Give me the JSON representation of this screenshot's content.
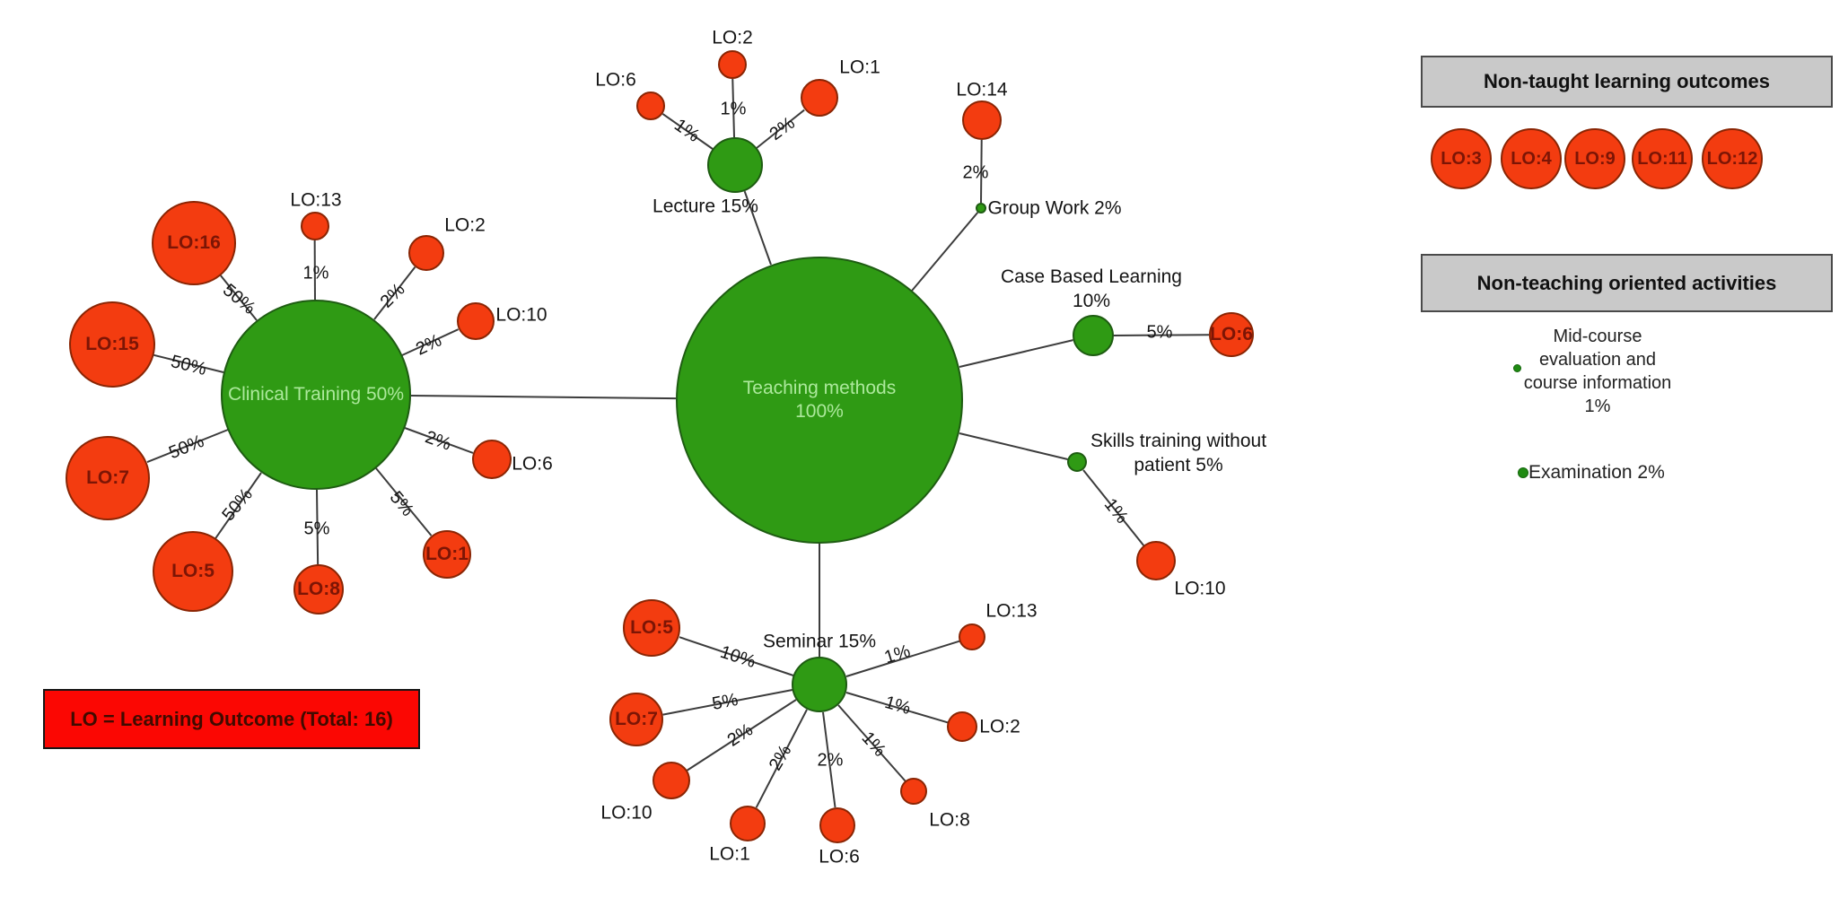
{
  "figure": {
    "key_box": "LO = Learning Outcome (Total: 16)"
  },
  "legend": {
    "non_taught": {
      "title": "Non-taught learning outcomes",
      "items": [
        "LO:3",
        "LO:4",
        "LO:9",
        "LO:11",
        "LO:12"
      ]
    },
    "non_teaching": {
      "title": "Non-teaching oriented activities",
      "midcourse_lines": [
        "Mid-course",
        "evaluation and",
        "course information",
        "1%"
      ],
      "examination": "Examination 2%"
    }
  },
  "diagram": {
    "nodes": [
      {
        "id": "teaching",
        "kind": "hub",
        "lines": [
          "Teaching methods",
          "100%"
        ]
      },
      {
        "id": "clinical",
        "kind": "hub",
        "lines": [
          "Clinical Training 50%"
        ]
      },
      {
        "id": "lecture",
        "kind": "hub",
        "lines": [
          "Lecture 15%"
        ]
      },
      {
        "id": "seminar",
        "kind": "hub",
        "lines": [
          "Seminar 15%"
        ]
      },
      {
        "id": "groupwork",
        "kind": "hub",
        "lines": [
          "Group Work 2%"
        ]
      },
      {
        "id": "casebased",
        "kind": "hub",
        "lines": [
          "Case Based Learning",
          "10%"
        ]
      },
      {
        "id": "skills",
        "kind": "hub",
        "lines": [
          "Skills training without",
          "patient 5%"
        ]
      },
      {
        "id": "cl_lo16",
        "kind": "leaf",
        "lines": [
          "LO:16"
        ]
      },
      {
        "id": "cl_lo13",
        "kind": "leaf",
        "lines": [
          "LO:13"
        ]
      },
      {
        "id": "cl_lo2",
        "kind": "leaf",
        "lines": [
          "LO:2"
        ]
      },
      {
        "id": "cl_lo10",
        "kind": "leaf",
        "lines": [
          "LO:10"
        ]
      },
      {
        "id": "cl_lo15",
        "kind": "leaf",
        "lines": [
          "LO:15"
        ]
      },
      {
        "id": "cl_lo7",
        "kind": "leaf",
        "lines": [
          "LO:7"
        ]
      },
      {
        "id": "cl_lo5",
        "kind": "leaf",
        "lines": [
          "LO:5"
        ]
      },
      {
        "id": "cl_lo8",
        "kind": "leaf",
        "lines": [
          "LO:8"
        ]
      },
      {
        "id": "cl_lo1",
        "kind": "leaf",
        "lines": [
          "LO:1"
        ]
      },
      {
        "id": "cl_lo6",
        "kind": "leaf",
        "lines": [
          "LO:6"
        ]
      },
      {
        "id": "le_lo6",
        "kind": "leaf",
        "lines": [
          "LO:6"
        ]
      },
      {
        "id": "le_lo2",
        "kind": "leaf",
        "lines": [
          "LO:2"
        ]
      },
      {
        "id": "le_lo1",
        "kind": "leaf",
        "lines": [
          "LO:1"
        ]
      },
      {
        "id": "gw_lo14",
        "kind": "leaf",
        "lines": [
          "LO:14"
        ]
      },
      {
        "id": "cb_lo6",
        "kind": "leaf",
        "lines": [
          "LO:6"
        ]
      },
      {
        "id": "sk_lo10",
        "kind": "leaf",
        "lines": [
          "LO:10"
        ]
      },
      {
        "id": "se_lo5",
        "kind": "leaf",
        "lines": [
          "LO:5"
        ]
      },
      {
        "id": "se_lo7",
        "kind": "leaf",
        "lines": [
          "LO:7"
        ]
      },
      {
        "id": "se_lo10",
        "kind": "leaf",
        "lines": [
          "LO:10"
        ]
      },
      {
        "id": "se_lo1",
        "kind": "leaf",
        "lines": [
          "LO:1"
        ]
      },
      {
        "id": "se_lo6",
        "kind": "leaf",
        "lines": [
          "LO:6"
        ]
      },
      {
        "id": "se_lo8",
        "kind": "leaf",
        "lines": [
          "LO:8"
        ]
      },
      {
        "id": "se_lo2",
        "kind": "leaf",
        "lines": [
          "LO:2"
        ]
      },
      {
        "id": "se_lo13",
        "kind": "leaf",
        "lines": [
          "LO:13"
        ]
      }
    ],
    "edges": [
      {
        "from": "clinical",
        "to": "cl_lo16",
        "label": "50%"
      },
      {
        "from": "clinical",
        "to": "cl_lo13",
        "label": "1%"
      },
      {
        "from": "clinical",
        "to": "cl_lo2",
        "label": "2%"
      },
      {
        "from": "clinical",
        "to": "cl_lo10",
        "label": "2%"
      },
      {
        "from": "clinical",
        "to": "cl_lo15",
        "label": "50%"
      },
      {
        "from": "clinical",
        "to": "cl_lo7",
        "label": "50%"
      },
      {
        "from": "clinical",
        "to": "cl_lo5",
        "label": "50%"
      },
      {
        "from": "clinical",
        "to": "cl_lo8",
        "label": "5%"
      },
      {
        "from": "clinical",
        "to": "cl_lo1",
        "label": "5%"
      },
      {
        "from": "clinical",
        "to": "cl_lo6",
        "label": "2%"
      },
      {
        "from": "clinical",
        "to": "teaching",
        "label": ""
      },
      {
        "from": "teaching",
        "to": "lecture",
        "label": ""
      },
      {
        "from": "teaching",
        "to": "groupwork",
        "label": ""
      },
      {
        "from": "teaching",
        "to": "casebased",
        "label": ""
      },
      {
        "from": "teaching",
        "to": "skills",
        "label": ""
      },
      {
        "from": "teaching",
        "to": "seminar",
        "label": ""
      },
      {
        "from": "lecture",
        "to": "le_lo6",
        "label": "1%"
      },
      {
        "from": "lecture",
        "to": "le_lo2",
        "label": "1%"
      },
      {
        "from": "lecture",
        "to": "le_lo1",
        "label": "2%"
      },
      {
        "from": "groupwork",
        "to": "gw_lo14",
        "label": "2%"
      },
      {
        "from": "casebased",
        "to": "cb_lo6",
        "label": "5%"
      },
      {
        "from": "skills",
        "to": "sk_lo10",
        "label": "1%"
      },
      {
        "from": "seminar",
        "to": "se_lo5",
        "label": "10%"
      },
      {
        "from": "seminar",
        "to": "se_lo7",
        "label": "5%"
      },
      {
        "from": "seminar",
        "to": "se_lo10",
        "label": "2%"
      },
      {
        "from": "seminar",
        "to": "se_lo1",
        "label": "2%"
      },
      {
        "from": "seminar",
        "to": "se_lo6",
        "label": "2%"
      },
      {
        "from": "seminar",
        "to": "se_lo8",
        "label": "1%"
      },
      {
        "from": "seminar",
        "to": "se_lo2",
        "label": "1%"
      },
      {
        "from": "seminar",
        "to": "se_lo13",
        "label": "1%"
      }
    ]
  }
}
